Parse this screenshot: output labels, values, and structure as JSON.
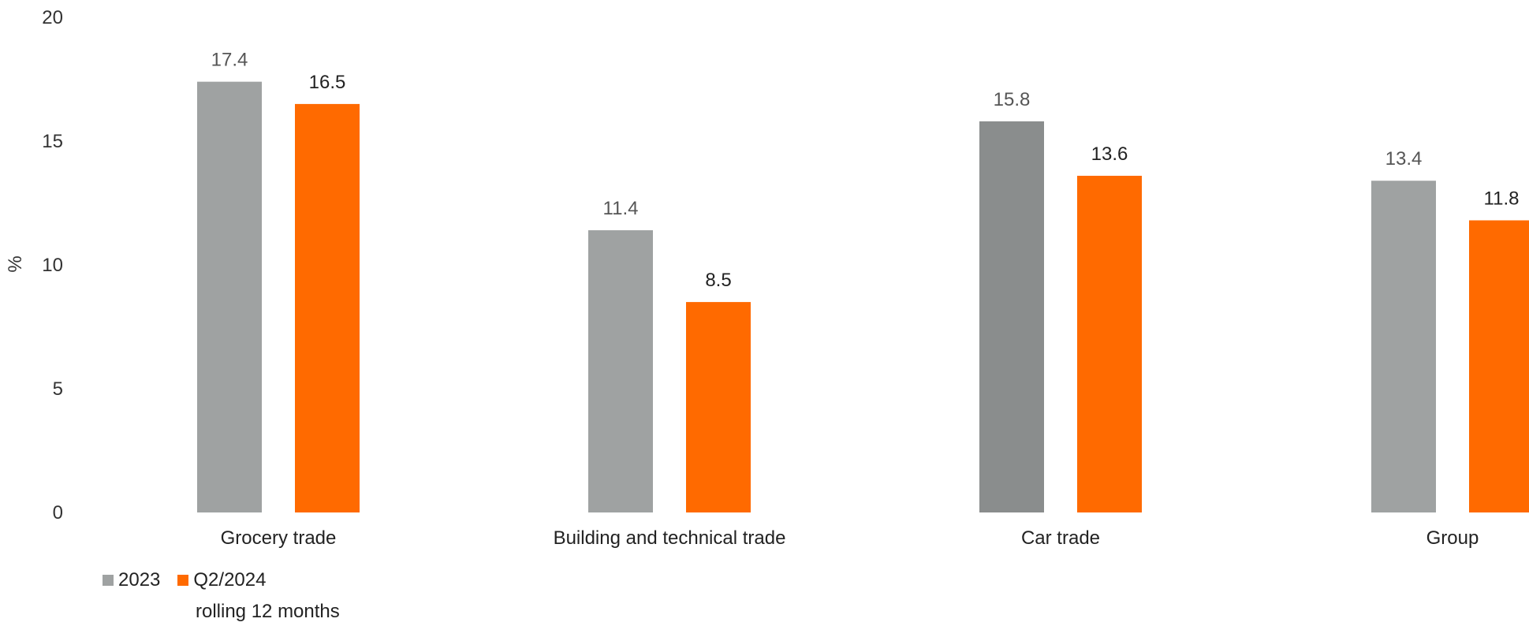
{
  "chart_data": {
    "type": "bar",
    "ylabel": "%",
    "ylim": [
      0,
      20
    ],
    "yticks": [
      0,
      5,
      10,
      15,
      20
    ],
    "categories": [
      "Grocery trade",
      "Building and technical trade",
      "Car trade",
      "Group"
    ],
    "series": [
      {
        "name": "2023",
        "values": [
          17.4,
          11.4,
          15.8,
          13.4
        ],
        "color": "#9fa2a2",
        "label_color": "#555555",
        "highlight_color": "#8a8d8d"
      },
      {
        "name": "Q2/2024",
        "values": [
          16.5,
          8.5,
          13.6,
          11.8
        ],
        "color": "#ff6a00",
        "label_color": "#222222"
      }
    ],
    "legend": {
      "placement": "bottom-left",
      "items": [
        "2023",
        "Q2/2024"
      ],
      "subtext": "rolling 12 months"
    }
  }
}
